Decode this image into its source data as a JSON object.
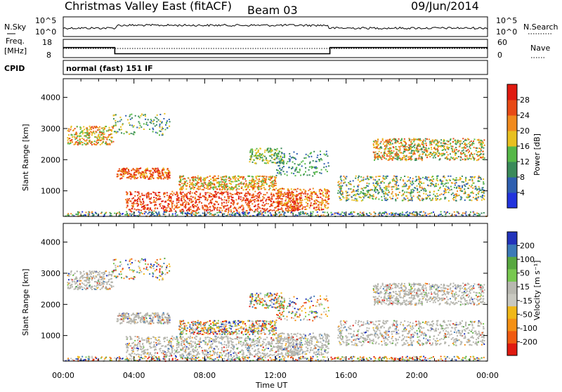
{
  "header": {
    "title": "Christmas Valley East (fitACF)",
    "beam": "Beam 03",
    "date": "09/Jun/2014"
  },
  "colors": {
    "power_scale": [
      "#2233dd",
      "#2e5fb0",
      "#3a8a5a",
      "#56b848",
      "#e8c020",
      "#f08a1e",
      "#e84a16",
      "#e01a10"
    ],
    "velocity_scale": [
      "#e01a10",
      "#f05a10",
      "#f49014",
      "#f0b818",
      "#c8c8c0",
      "#b8b8b0",
      "#78c850",
      "#58a840",
      "#3c7ab8",
      "#2233bb"
    ],
    "ground_scatter": "#b4b4ac"
  },
  "chart_data": [
    {
      "type": "line",
      "panel": "noise",
      "left_label": "N.Sky",
      "right_label": "N.Search",
      "left_ticks": [
        "10^5",
        "10^0"
      ],
      "right_ticks": [
        "10^5",
        "10^0"
      ]
    },
    {
      "type": "line",
      "panel": "frequency",
      "left_label_1": "Freq.",
      "left_label_2": "[MHz]",
      "right_label": "Nave",
      "left_ticks": [
        "18",
        "8"
      ],
      "right_ticks": [
        "60",
        "0"
      ],
      "segments": [
        {
          "start": "00:00",
          "end": "02:55",
          "freq": 14.5
        },
        {
          "start": "02:55",
          "end": "15:05",
          "freq": 10.5
        },
        {
          "start": "15:05",
          "end": "24:00",
          "freq": 14.5
        }
      ],
      "nave_dotted": 30
    },
    {
      "type": "table",
      "panel": "cpid",
      "label": "CPID",
      "value": "normal (fast) 151 IF"
    },
    {
      "type": "heatmap",
      "panel": "power",
      "ylabel": "Slant Range [km]",
      "yticks": [
        "4000",
        "3000",
        "2000",
        "1000"
      ],
      "colorbar_label": "Power [dB]",
      "colorbar_ticks": [
        "28",
        "24",
        "20",
        "16",
        "12",
        "8",
        "4"
      ]
    },
    {
      "type": "heatmap",
      "panel": "velocity",
      "ylabel": "Slant Range [km]",
      "yticks": [
        "4000",
        "3000",
        "2000",
        "1000"
      ],
      "colorbar_label": "Velocity [m s⁻¹]",
      "colorbar_ticks": [
        "200",
        "100",
        "50",
        "15",
        "-15",
        "-50",
        "-100",
        "-200"
      ],
      "xlabel": "Time UT",
      "xticks": [
        "00:00",
        "04:00",
        "08:00",
        "12:00",
        "16:00",
        "20:00",
        "00:00"
      ],
      "x_range_hours": [
        0,
        24
      ],
      "y_range_km": [
        180,
        4600
      ]
    }
  ]
}
